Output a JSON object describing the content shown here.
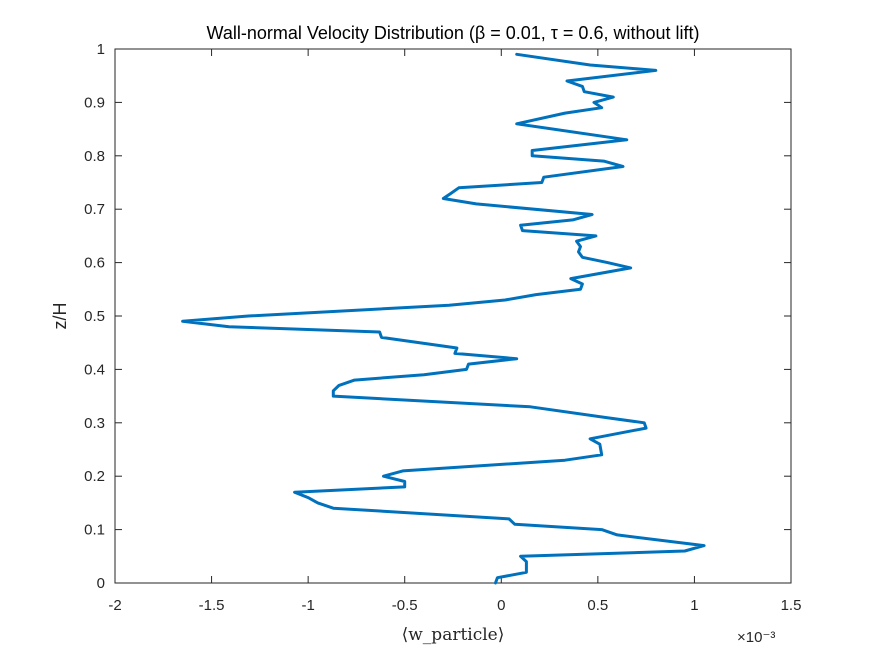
{
  "chart_data": {
    "type": "line",
    "title": "Wall-normal Velocity Distribution (β = 0.01, τ = 0.6, without lift)",
    "xlabel": "⟨w_particle⟩",
    "ylabel": "z/H",
    "x_multiplier": "×10⁻³",
    "xlim": [
      -0.002,
      0.0015
    ],
    "ylim": [
      0,
      1
    ],
    "xticks": [
      -0.002,
      -0.0015,
      -0.001,
      -0.0005,
      0,
      0.0005,
      0.001,
      0.0015
    ],
    "xtick_labels": [
      "-2",
      "-1.5",
      "-1",
      "-0.5",
      "0",
      "0.5",
      "1",
      "1.5"
    ],
    "yticks": [
      0,
      0.1,
      0.2,
      0.3,
      0.4,
      0.5,
      0.6,
      0.7,
      0.8,
      0.9,
      1
    ],
    "ytick_labels": [
      "0",
      "0.1",
      "0.2",
      "0.3",
      "0.4",
      "0.5",
      "0.6",
      "0.7",
      "0.8",
      "0.9",
      "1"
    ],
    "grid": false,
    "series": [
      {
        "color": "#0072BD",
        "points": [
          [
            -3e-05,
            0.0
          ],
          [
            -2e-05,
            0.01
          ],
          [
            0.00013,
            0.02
          ],
          [
            0.00013,
            0.04
          ],
          [
            0.0001,
            0.05
          ],
          [
            0.00095,
            0.06
          ],
          [
            0.00105,
            0.07
          ],
          [
            0.0006,
            0.09
          ],
          [
            0.00052,
            0.1
          ],
          [
            7e-05,
            0.11
          ],
          [
            4e-05,
            0.12
          ],
          [
            -0.00087,
            0.14
          ],
          [
            -0.00095,
            0.15
          ],
          [
            -0.001,
            0.16
          ],
          [
            -0.00107,
            0.17
          ],
          [
            -0.0005,
            0.18
          ],
          [
            -0.0005,
            0.19
          ],
          [
            -0.00061,
            0.2
          ],
          [
            -0.00051,
            0.21
          ],
          [
            0.00033,
            0.23
          ],
          [
            0.00052,
            0.24
          ],
          [
            0.00051,
            0.26
          ],
          [
            0.00046,
            0.27
          ],
          [
            0.00075,
            0.29
          ],
          [
            0.00074,
            0.3
          ],
          [
            0.00054,
            0.31
          ],
          [
            0.00015,
            0.33
          ],
          [
            -0.00087,
            0.35
          ],
          [
            -0.00087,
            0.36
          ],
          [
            -0.00084,
            0.37
          ],
          [
            -0.00076,
            0.38
          ],
          [
            -0.0004,
            0.39
          ],
          [
            -0.00018,
            0.4
          ],
          [
            -0.00017,
            0.41
          ],
          [
            8e-05,
            0.42
          ],
          [
            -0.00024,
            0.43
          ],
          [
            -0.00023,
            0.44
          ],
          [
            -0.00062,
            0.46
          ],
          [
            -0.00063,
            0.47
          ],
          [
            -0.00141,
            0.48
          ],
          [
            -0.00165,
            0.49
          ],
          [
            -0.00131,
            0.5
          ],
          [
            -0.00027,
            0.52
          ],
          [
            2e-05,
            0.53
          ],
          [
            0.00018,
            0.54
          ],
          [
            0.00041,
            0.55
          ],
          [
            0.00042,
            0.56
          ],
          [
            0.00036,
            0.57
          ],
          [
            0.00067,
            0.59
          ],
          [
            0.00055,
            0.6
          ],
          [
            0.00042,
            0.61
          ],
          [
            0.0004,
            0.62
          ],
          [
            0.00041,
            0.63
          ],
          [
            0.00039,
            0.64
          ],
          [
            0.00049,
            0.65
          ],
          [
            0.00011,
            0.66
          ],
          [
            0.0001,
            0.67
          ],
          [
            0.00037,
            0.68
          ],
          [
            0.00047,
            0.69
          ],
          [
            -0.00013,
            0.71
          ],
          [
            -0.0003,
            0.72
          ],
          [
            -0.00026,
            0.73
          ],
          [
            -0.00022,
            0.74
          ],
          [
            0.00021,
            0.75
          ],
          [
            0.00022,
            0.76
          ],
          [
            0.00063,
            0.78
          ],
          [
            0.00053,
            0.79
          ],
          [
            0.00016,
            0.8
          ],
          [
            0.00016,
            0.81
          ],
          [
            0.00065,
            0.83
          ],
          [
            8e-05,
            0.86
          ],
          [
            0.00033,
            0.88
          ],
          [
            0.00052,
            0.89
          ],
          [
            0.00048,
            0.9
          ],
          [
            0.00058,
            0.91
          ],
          [
            0.00043,
            0.92
          ],
          [
            0.00042,
            0.93
          ],
          [
            0.00034,
            0.94
          ],
          [
            0.0008,
            0.96
          ],
          [
            0.00046,
            0.97
          ],
          [
            8e-05,
            0.99
          ]
        ]
      }
    ]
  }
}
